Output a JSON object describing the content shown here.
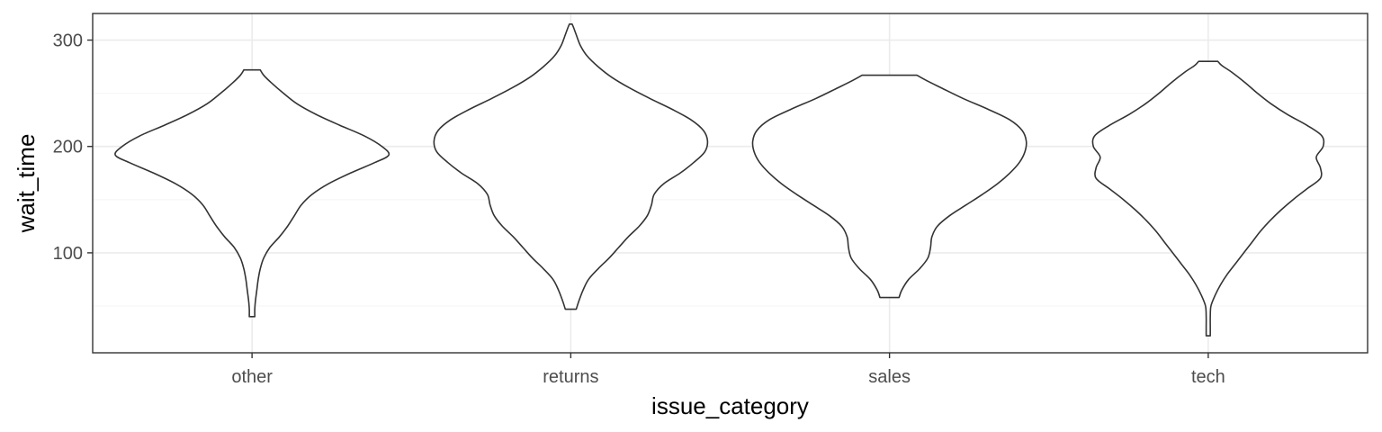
{
  "chart_data": {
    "type": "violin",
    "title": "",
    "xlabel": "issue_category",
    "ylabel": "wait_time",
    "categories": [
      "other",
      "returns",
      "sales",
      "tech"
    ],
    "ylim": [
      6,
      325
    ],
    "y_ticks": [
      100,
      200,
      300
    ],
    "y_tick_labels": [
      "100",
      "200",
      "300"
    ],
    "grid": true,
    "legend": "none",
    "theme": "bw",
    "colors": {
      "outline": "#333333",
      "fill": "#ffffff",
      "grid_major": "#ebebeb",
      "grid_minor": "#f5f5f5",
      "panel_border": "#333333",
      "tick_label": "#4d4d4d",
      "axis_title": "#000000"
    },
    "violins": [
      {
        "category": "other",
        "min": 40,
        "max": 272,
        "profile": [
          [
            40,
            0.02
          ],
          [
            47,
            0.02
          ],
          [
            55,
            0.025
          ],
          [
            65,
            0.035
          ],
          [
            75,
            0.045
          ],
          [
            85,
            0.06
          ],
          [
            95,
            0.085
          ],
          [
            105,
            0.13
          ],
          [
            115,
            0.2
          ],
          [
            125,
            0.26
          ],
          [
            135,
            0.31
          ],
          [
            145,
            0.36
          ],
          [
            155,
            0.44
          ],
          [
            165,
            0.56
          ],
          [
            175,
            0.72
          ],
          [
            185,
            0.9
          ],
          [
            192,
            1.0
          ],
          [
            200,
            0.95
          ],
          [
            210,
            0.82
          ],
          [
            220,
            0.64
          ],
          [
            230,
            0.47
          ],
          [
            240,
            0.33
          ],
          [
            250,
            0.23
          ],
          [
            260,
            0.14
          ],
          [
            267,
            0.085
          ],
          [
            272,
            0.06
          ]
        ]
      },
      {
        "category": "returns",
        "min": 47,
        "max": 315,
        "profile": [
          [
            47,
            0.04
          ],
          [
            55,
            0.06
          ],
          [
            65,
            0.09
          ],
          [
            75,
            0.13
          ],
          [
            85,
            0.2
          ],
          [
            95,
            0.28
          ],
          [
            105,
            0.35
          ],
          [
            115,
            0.42
          ],
          [
            125,
            0.5
          ],
          [
            135,
            0.56
          ],
          [
            145,
            0.59
          ],
          [
            155,
            0.61
          ],
          [
            165,
            0.68
          ],
          [
            175,
            0.8
          ],
          [
            185,
            0.9
          ],
          [
            195,
            0.98
          ],
          [
            205,
            1.0
          ],
          [
            215,
            0.97
          ],
          [
            225,
            0.88
          ],
          [
            235,
            0.74
          ],
          [
            245,
            0.58
          ],
          [
            255,
            0.43
          ],
          [
            265,
            0.3
          ],
          [
            275,
            0.2
          ],
          [
            285,
            0.12
          ],
          [
            295,
            0.07
          ],
          [
            305,
            0.04
          ],
          [
            312,
            0.02
          ],
          [
            315,
            0.01
          ]
        ]
      },
      {
        "category": "sales",
        "min": 58,
        "max": 267,
        "profile": [
          [
            58,
            0.07
          ],
          [
            65,
            0.09
          ],
          [
            75,
            0.14
          ],
          [
            85,
            0.22
          ],
          [
            95,
            0.28
          ],
          [
            105,
            0.3
          ],
          [
            115,
            0.31
          ],
          [
            125,
            0.35
          ],
          [
            135,
            0.44
          ],
          [
            145,
            0.56
          ],
          [
            155,
            0.68
          ],
          [
            165,
            0.79
          ],
          [
            175,
            0.88
          ],
          [
            185,
            0.95
          ],
          [
            195,
            0.99
          ],
          [
            205,
            1.0
          ],
          [
            215,
            0.97
          ],
          [
            225,
            0.88
          ],
          [
            235,
            0.72
          ],
          [
            245,
            0.54
          ],
          [
            255,
            0.38
          ],
          [
            262,
            0.27
          ],
          [
            267,
            0.2
          ]
        ]
      },
      {
        "category": "tech",
        "min": 22,
        "max": 280,
        "profile": [
          [
            22,
            0.015
          ],
          [
            30,
            0.015
          ],
          [
            40,
            0.015
          ],
          [
            50,
            0.02
          ],
          [
            60,
            0.05
          ],
          [
            70,
            0.09
          ],
          [
            80,
            0.14
          ],
          [
            90,
            0.2
          ],
          [
            100,
            0.26
          ],
          [
            110,
            0.32
          ],
          [
            120,
            0.38
          ],
          [
            130,
            0.45
          ],
          [
            140,
            0.53
          ],
          [
            150,
            0.62
          ],
          [
            160,
            0.72
          ],
          [
            170,
            0.82
          ],
          [
            180,
            0.82
          ],
          [
            190,
            0.79
          ],
          [
            200,
            0.84
          ],
          [
            210,
            0.83
          ],
          [
            220,
            0.72
          ],
          [
            230,
            0.58
          ],
          [
            240,
            0.46
          ],
          [
            250,
            0.36
          ],
          [
            260,
            0.27
          ],
          [
            270,
            0.17
          ],
          [
            276,
            0.1
          ],
          [
            280,
            0.07
          ]
        ]
      }
    ]
  }
}
